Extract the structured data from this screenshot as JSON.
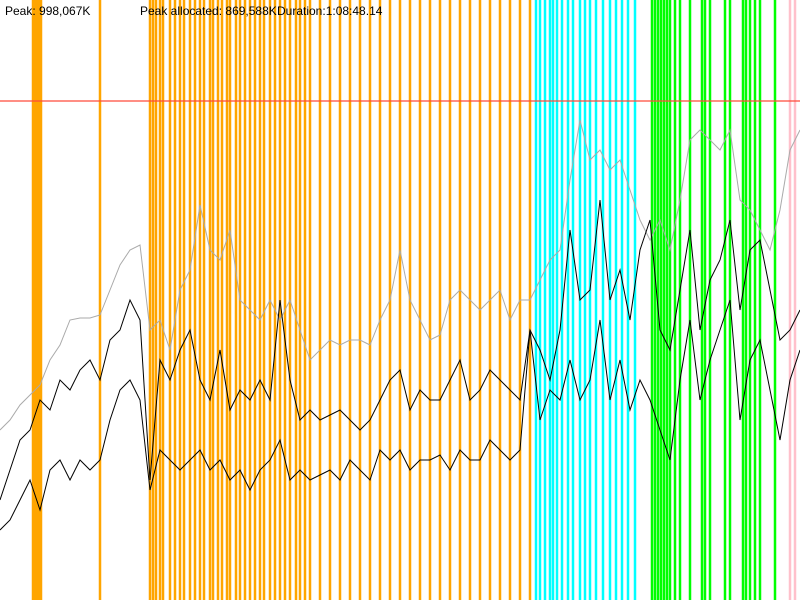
{
  "chart_data": {
    "type": "line",
    "peak": {
      "value": 998067,
      "label": "Peak: 998,067K",
      "color": "#ff4a3a"
    },
    "peak_allocated": "Peak allocated: 869,588K",
    "duration": "Duration:1:08:48.14",
    "xlim": [
      0,
      80
    ],
    "ylim": [
      0,
      1200000
    ],
    "x": [
      0,
      1,
      2,
      3,
      4,
      5,
      6,
      7,
      8,
      9,
      10,
      11,
      12,
      13,
      14,
      15,
      16,
      17,
      18,
      19,
      20,
      21,
      22,
      23,
      24,
      25,
      26,
      27,
      28,
      29,
      30,
      31,
      32,
      33,
      34,
      35,
      36,
      37,
      38,
      39,
      40,
      41,
      42,
      43,
      44,
      45,
      46,
      47,
      48,
      49,
      50,
      51,
      52,
      53,
      54,
      55,
      56,
      57,
      58,
      59,
      60,
      61,
      62,
      63,
      64,
      65,
      66,
      67,
      68,
      69,
      70,
      71,
      72,
      73,
      74,
      75,
      76,
      77,
      78,
      79,
      80
    ],
    "events": [
      {
        "color": "#ffa500",
        "x": [
          3.3,
          3.5,
          3.7,
          3.9,
          4.1,
          10,
          15,
          15.3,
          15.6,
          16,
          16.3,
          17,
          17.5,
          18,
          18.4,
          19,
          19.5,
          20,
          20.4,
          21,
          21.3,
          21.8,
          22.2,
          22.7,
          23,
          23.6,
          24,
          24.5,
          25,
          25.5,
          26,
          26.4,
          27,
          27.5,
          28,
          28.5,
          29,
          29.6,
          30,
          30.5,
          31,
          32,
          33,
          34,
          35,
          36,
          37,
          38,
          39,
          40,
          41,
          42,
          43,
          44,
          45,
          46,
          47,
          48,
          49,
          50,
          51,
          52,
          53
        ]
      },
      {
        "color": "#00ffff",
        "x": [
          53.6,
          54,
          54.5,
          55,
          55.3,
          55.7,
          56.2,
          56.8,
          57.3,
          58,
          58.5,
          59,
          59.6,
          60.3,
          61,
          61.6,
          62.2,
          62.8,
          63.5
        ]
      },
      {
        "color": "#00ff00",
        "x": [
          65.2,
          65.5,
          65.8,
          66.1,
          66.4,
          66.7,
          67,
          67.5,
          68,
          69,
          70.2,
          70.5,
          71,
          72.5,
          73,
          74.3,
          74.6,
          75,
          75.5,
          76,
          77.5
        ]
      },
      {
        "color": "#ffc0cb",
        "x": [
          79,
          79.5
        ]
      }
    ],
    "series": [
      {
        "color": "#aaaaaa",
        "values": [
          340000,
          360000,
          390000,
          410000,
          430000,
          480000,
          510000,
          560000,
          564000,
          564000,
          570000,
          620000,
          670000,
          700000,
          710000,
          540000,
          560000,
          500000,
          620000,
          660000,
          790000,
          700000,
          680000,
          740000,
          600000,
          580000,
          560000,
          600000,
          560000,
          600000,
          540000,
          480000,
          500000,
          520000,
          510000,
          520000,
          520000,
          510000,
          560000,
          600000,
          700000,
          600000,
          560000,
          520000,
          530000,
          600000,
          620000,
          600000,
          580000,
          600000,
          620000,
          560000,
          600000,
          600000,
          640000,
          680000,
          700000,
          840000,
          960000,
          880000,
          900000,
          860000,
          880000,
          820000,
          760000,
          720000,
          760000,
          700000,
          800000,
          920000,
          940000,
          920000,
          900000,
          940000,
          800000,
          780000,
          740000,
          700000,
          780000,
          900000,
          940000
        ]
      },
      {
        "color": "#000000",
        "values": [
          200000,
          260000,
          320000,
          340000,
          400000,
          380000,
          440000,
          420000,
          460000,
          480000,
          440000,
          520000,
          540000,
          600000,
          560000,
          240000,
          480000,
          440000,
          500000,
          540000,
          440000,
          400000,
          500000,
          380000,
          420000,
          400000,
          440000,
          400000,
          600000,
          440000,
          360000,
          380000,
          360000,
          370000,
          380000,
          360000,
          340000,
          360000,
          400000,
          440000,
          460000,
          380000,
          420000,
          400000,
          400000,
          440000,
          480000,
          400000,
          420000,
          460000,
          440000,
          420000,
          400000,
          540000,
          500000,
          440000,
          540000,
          740000,
          600000,
          620000,
          800000,
          600000,
          660000,
          560000,
          700000,
          760000,
          540000,
          500000,
          620000,
          740000,
          540000,
          640000,
          680000,
          760000,
          580000,
          700000,
          720000,
          620000,
          520000,
          540000,
          580000
        ]
      },
      {
        "color": "#000000",
        "values": [
          140000,
          160000,
          200000,
          240000,
          180000,
          260000,
          280000,
          240000,
          280000,
          260000,
          280000,
          360000,
          420000,
          440000,
          400000,
          220000,
          300000,
          280000,
          260000,
          280000,
          300000,
          260000,
          280000,
          240000,
          260000,
          220000,
          260000,
          280000,
          320000,
          240000,
          260000,
          240000,
          250000,
          260000,
          240000,
          280000,
          260000,
          240000,
          300000,
          280000,
          300000,
          260000,
          280000,
          280000,
          290000,
          260000,
          300000,
          280000,
          280000,
          320000,
          300000,
          280000,
          300000,
          540000,
          360000,
          420000,
          400000,
          480000,
          400000,
          440000,
          560000,
          400000,
          480000,
          380000,
          440000,
          400000,
          340000,
          280000,
          440000,
          560000,
          400000,
          480000,
          540000,
          600000,
          360000,
          480000,
          520000,
          420000,
          320000,
          440000,
          500000
        ]
      }
    ]
  }
}
